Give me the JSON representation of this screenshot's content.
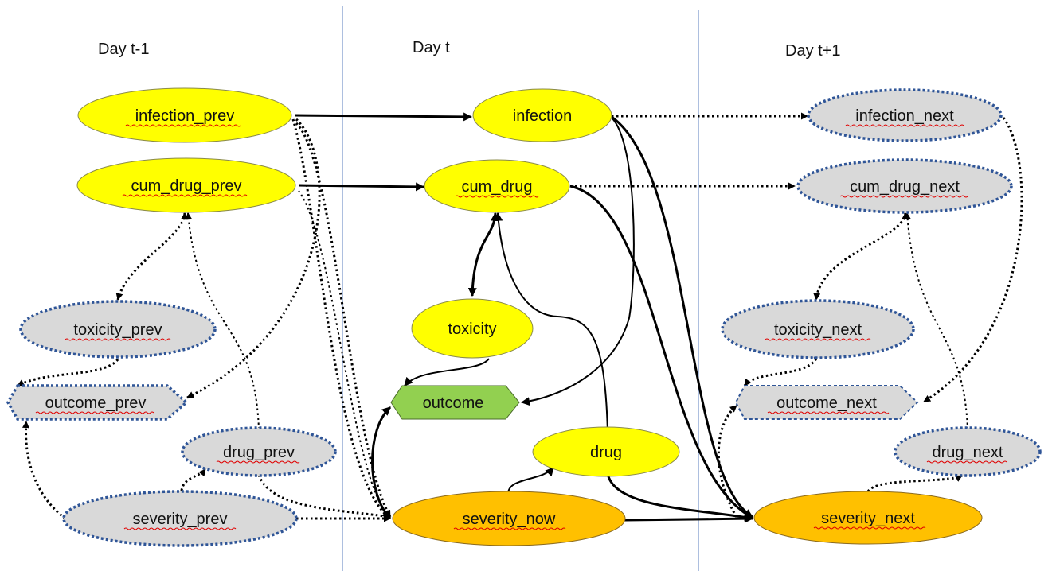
{
  "columns": [
    {
      "id": "prev",
      "title": "Day t-1"
    },
    {
      "id": "now",
      "title": "Day t"
    },
    {
      "id": "next",
      "title": "Day t+1"
    }
  ],
  "colors": {
    "observed_fill": "#ffff00",
    "latent_fill": "#d9d9d9",
    "severity_fill": "#ffc000",
    "outcome_fill": "#92d050",
    "observed_stroke": "#8a8a4a",
    "latent_stroke": "#2f5597",
    "edge": "#000000",
    "divider": "#5b7fbf",
    "spellcheck": "#e00000"
  },
  "nodes": [
    {
      "id": "infection_prev",
      "label": "infection_prev",
      "style": "observed"
    },
    {
      "id": "cum_drug_prev",
      "label": "cum_drug_prev",
      "style": "observed"
    },
    {
      "id": "toxicity_prev",
      "label": "toxicity_prev",
      "style": "latent"
    },
    {
      "id": "outcome_prev",
      "label": "outcome_prev",
      "style": "latent-hex"
    },
    {
      "id": "drug_prev",
      "label": "drug_prev",
      "style": "latent"
    },
    {
      "id": "severity_prev",
      "label": "severity_prev",
      "style": "latent"
    },
    {
      "id": "infection",
      "label": "infection",
      "style": "observed"
    },
    {
      "id": "cum_drug",
      "label": "cum_drug",
      "style": "observed"
    },
    {
      "id": "toxicity",
      "label": "toxicity",
      "style": "observed"
    },
    {
      "id": "outcome",
      "label": "outcome",
      "style": "outcome-hex"
    },
    {
      "id": "drug",
      "label": "drug",
      "style": "observed"
    },
    {
      "id": "severity_now",
      "label": "severity_now",
      "style": "severity"
    },
    {
      "id": "infection_next",
      "label": "infection_next",
      "style": "latent"
    },
    {
      "id": "cum_drug_next",
      "label": "cum_drug_next",
      "style": "latent"
    },
    {
      "id": "toxicity_next",
      "label": "toxicity_next",
      "style": "latent"
    },
    {
      "id": "outcome_next",
      "label": "outcome_next",
      "style": "latent-hex"
    },
    {
      "id": "drug_next",
      "label": "drug_next",
      "style": "latent"
    },
    {
      "id": "severity_next",
      "label": "severity_next",
      "style": "severity"
    }
  ],
  "edges": [
    {
      "from": "infection_prev",
      "to": "infection",
      "style": "solid"
    },
    {
      "from": "cum_drug_prev",
      "to": "cum_drug",
      "style": "solid"
    },
    {
      "from": "infection_prev",
      "to": "outcome_prev",
      "style": "dotted"
    },
    {
      "from": "infection_prev",
      "to": "severity_now",
      "style": "dotted"
    },
    {
      "from": "cum_drug_prev",
      "to": "severity_now",
      "style": "dotted"
    },
    {
      "from": "cum_drug_prev",
      "to": "toxicity_prev",
      "style": "dotted",
      "bidirectional": true
    },
    {
      "from": "drug_prev",
      "to": "cum_drug_prev",
      "style": "dotted"
    },
    {
      "from": "toxicity_prev",
      "to": "outcome_prev",
      "style": "dotted"
    },
    {
      "from": "severity_prev",
      "to": "outcome_prev",
      "style": "dotted"
    },
    {
      "from": "severity_prev",
      "to": "drug_prev",
      "style": "dotted"
    },
    {
      "from": "severity_prev",
      "to": "severity_now",
      "style": "dotted"
    },
    {
      "from": "drug_prev",
      "to": "severity_now",
      "style": "dotted"
    },
    {
      "from": "infection",
      "to": "infection_next",
      "style": "dotted"
    },
    {
      "from": "infection",
      "to": "outcome",
      "style": "solid"
    },
    {
      "from": "infection",
      "to": "severity_next",
      "style": "solid"
    },
    {
      "from": "cum_drug",
      "to": "cum_drug_next",
      "style": "dotted"
    },
    {
      "from": "cum_drug",
      "to": "severity_next",
      "style": "solid"
    },
    {
      "from": "cum_drug",
      "to": "toxicity",
      "style": "solid",
      "bidirectional": true
    },
    {
      "from": "drug",
      "to": "cum_drug",
      "style": "solid"
    },
    {
      "from": "toxicity",
      "to": "outcome",
      "style": "solid"
    },
    {
      "from": "severity_now",
      "to": "outcome",
      "style": "solid",
      "bidirectional": true
    },
    {
      "from": "severity_now",
      "to": "drug",
      "style": "solid"
    },
    {
      "from": "severity_now",
      "to": "severity_next",
      "style": "solid"
    },
    {
      "from": "drug",
      "to": "severity_next",
      "style": "solid"
    },
    {
      "from": "cum_drug_next",
      "to": "toxicity_next",
      "style": "dotted",
      "bidirectional": true
    },
    {
      "from": "drug_next",
      "to": "cum_drug_next",
      "style": "dotted"
    },
    {
      "from": "toxicity_next",
      "to": "outcome_next",
      "style": "dotted"
    },
    {
      "from": "infection_next",
      "to": "outcome_next",
      "style": "dotted"
    },
    {
      "from": "severity_next",
      "to": "outcome_next",
      "style": "dotted"
    },
    {
      "from": "severity_next",
      "to": "drug_next",
      "style": "dotted"
    }
  ]
}
